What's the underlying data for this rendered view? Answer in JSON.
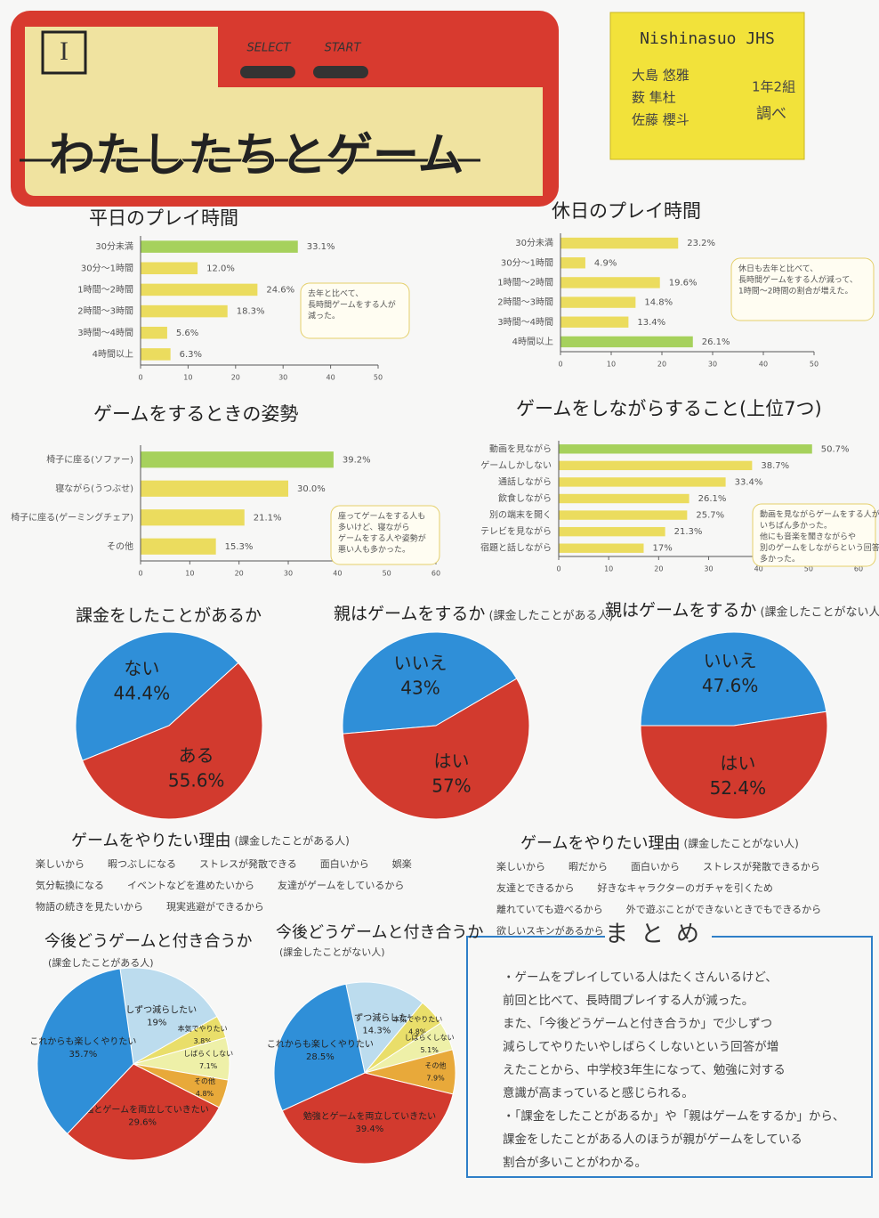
{
  "header": {
    "badge": "I",
    "select": "SELECT",
    "start": "START",
    "title": "わたしたちとゲーム",
    "school": "Nishinasuo JHS",
    "members": [
      "大島 悠雅",
      "薮 隼杜",
      "佐藤 櫻斗"
    ],
    "class": "1年2組",
    "note": "調べ"
  },
  "chart_data": [
    {
      "type": "barh",
      "title": "平日のプレイ時間",
      "categories": [
        "30分未満",
        "30分〜1時間",
        "1時間〜2時間",
        "2時間〜3時間",
        "3時間〜4時間",
        "4時間以上"
      ],
      "values": [
        33.1,
        12.0,
        24.6,
        18.3,
        5.6,
        6.3
      ],
      "value_labels": [
        "33.1%",
        "12.0%",
        "24.6%",
        "18.3%",
        "5.6%",
        "6.3%"
      ],
      "colors": [
        "#a6d15c",
        "#ebdc5e",
        "#ebdc5e",
        "#ebdc5e",
        "#ebdc5e",
        "#ebdc5e"
      ],
      "xlim": [
        0,
        50
      ],
      "xticks": [
        0,
        10,
        20,
        30,
        40,
        50
      ],
      "note": [
        "去年と比べて、",
        "長時間ゲームをする人が",
        "減った。"
      ]
    },
    {
      "type": "barh",
      "title": "休日のプレイ時間",
      "categories": [
        "30分未満",
        "30分〜1時間",
        "1時間〜2時間",
        "2時間〜3時間",
        "3時間〜4時間",
        "4時間以上"
      ],
      "values": [
        23.2,
        4.9,
        19.6,
        14.8,
        13.4,
        26.1
      ],
      "value_labels": [
        "23.2%",
        "4.9%",
        "19.6%",
        "14.8%",
        "13.4%",
        "26.1%"
      ],
      "colors": [
        "#ebdc5e",
        "#ebdc5e",
        "#ebdc5e",
        "#ebdc5e",
        "#ebdc5e",
        "#a6d15c"
      ],
      "xlim": [
        0,
        50
      ],
      "xticks": [
        0,
        10,
        20,
        30,
        40,
        50
      ],
      "note": [
        "休日も去年と比べて、",
        "長時間ゲームをする人が減って、",
        "1時間〜2時間の割合が増えた。"
      ]
    },
    {
      "type": "barh",
      "title": "ゲームをするときの姿勢",
      "categories": [
        "椅子に座る(ソファー)",
        "寝ながら(うつぶせ)",
        "椅子に座る(ゲーミングチェア)",
        "その他"
      ],
      "values": [
        39.2,
        30.0,
        21.1,
        15.3
      ],
      "value_labels": [
        "39.2%",
        "30.0%",
        "21.1%",
        "15.3%"
      ],
      "colors": [
        "#a6d15c",
        "#ebdc5e",
        "#ebdc5e",
        "#ebdc5e"
      ],
      "xlim": [
        0,
        60
      ],
      "xticks": [
        0,
        10,
        20,
        30,
        40,
        50,
        60
      ],
      "note": [
        "座ってゲームをする人も",
        "多いけど、寝ながら",
        "ゲームをする人や姿勢が",
        "悪い人も多かった。"
      ]
    },
    {
      "type": "barh",
      "title": "ゲームをしながらすること(上位7つ)",
      "categories": [
        "動画を見ながら",
        "ゲームしかしない",
        "通話しながら",
        "飲食しながら",
        "別の端末を開く",
        "テレビを見ながら",
        "宿題と話しながら"
      ],
      "values": [
        50.7,
        38.7,
        33.4,
        26.1,
        25.7,
        21.3,
        17
      ],
      "value_labels": [
        "50.7%",
        "38.7%",
        "33.4%",
        "26.1%",
        "25.7%",
        "21.3%",
        "17%"
      ],
      "colors": [
        "#a6d15c",
        "#ebdc5e",
        "#ebdc5e",
        "#ebdc5e",
        "#ebdc5e",
        "#ebdc5e",
        "#ebdc5e"
      ],
      "xlim": [
        0,
        60
      ],
      "xticks": [
        0,
        10,
        20,
        30,
        40,
        50,
        60
      ],
      "note": [
        "動画を見ながらゲームをする人が",
        "いちばん多かった。",
        "他にも音楽を聞きながらや",
        "別のゲームをしながらという回答も",
        "多かった。"
      ]
    },
    {
      "type": "pie",
      "title": "課金をしたことがあるか",
      "categories": [
        "ない",
        "ある"
      ],
      "values": [
        44.4,
        55.6
      ],
      "value_labels": [
        "44.4%",
        "55.6%"
      ],
      "colors": [
        "#2f8fd8",
        "#d23a2e"
      ]
    },
    {
      "type": "pie",
      "title": "親はゲームをするか",
      "subtitle": "(課金したことがある人)",
      "categories": [
        "いいえ",
        "はい"
      ],
      "values": [
        43,
        57
      ],
      "value_labels": [
        "43%",
        "57%"
      ],
      "colors": [
        "#2f8fd8",
        "#d23a2e"
      ]
    },
    {
      "type": "pie",
      "title": "親はゲームをするか",
      "subtitle": "(課金したことがない人)",
      "categories": [
        "いいえ",
        "はい"
      ],
      "values": [
        47.6,
        52.4
      ],
      "value_labels": [
        "47.6%",
        "52.4%"
      ],
      "colors": [
        "#2f8fd8",
        "#d23a2e"
      ]
    },
    {
      "type": "pie",
      "title": "今後どうゲームと付き合うか",
      "subtitle": "(課金したことがある人)",
      "categories": [
        "少しずつ減らしたい",
        "本気でやりたい",
        "しばらくしない",
        "その他",
        "勉強とゲームを両立していきたい",
        "これからも楽しくやりたい"
      ],
      "values": [
        19,
        3.8,
        7.1,
        4.8,
        29.6,
        35.7
      ],
      "value_labels": [
        "19%",
        "3.8%",
        "7.1%",
        "4.8%",
        "29.6%",
        "35.7%"
      ],
      "colors": [
        "#bcdcee",
        "#e9de6a",
        "#eef0a8",
        "#e8a93a",
        "#d23a2e",
        "#2f8fd8"
      ]
    },
    {
      "type": "pie",
      "title": "今後どうゲームと付き合うか",
      "subtitle": "(課金したことがない人)",
      "categories": [
        "少しずつ減らしたい",
        "本気でやりたい",
        "しばらくしない",
        "その他",
        "勉強とゲームを両立していきたい",
        "これからも楽しくやりたい"
      ],
      "values": [
        14.3,
        4.8,
        5.1,
        7.9,
        39.4,
        28.5
      ],
      "value_labels": [
        "14.3%",
        "4.8%",
        "5.1%",
        "7.9%",
        "39.4%",
        "28.5%"
      ],
      "colors": [
        "#bcdcee",
        "#e9de6a",
        "#eef0a8",
        "#e8a93a",
        "#d23a2e",
        "#2f8fd8"
      ]
    }
  ],
  "reasons": [
    {
      "title": "ゲームをやりたい理由",
      "subtitle": "(課金したことがある人)",
      "items": [
        "楽しいから",
        "暇つぶしになる",
        "ストレスが発散できる",
        "面白いから",
        "娯楽",
        "気分転換になる",
        "イベントなどを進めたいから",
        "友達がゲームをしているから",
        "物語の続きを見たいから",
        "現実逃避ができるから"
      ]
    },
    {
      "title": "ゲームをやりたい理由",
      "subtitle": "(課金したことがない人)",
      "items": [
        "楽しいから",
        "暇だから",
        "面白いから",
        "ストレスが発散できるから",
        "友達とできるから",
        "好きなキャラクターのガチャを引くため",
        "離れていても遊べるから",
        "外で遊ぶことができないときでもできるから",
        "欲しいスキンがあるから"
      ]
    }
  ],
  "summary": {
    "title": "まとめ",
    "lines": [
      "・ゲームをプレイしている人はたくさんいるけど、",
      "前回と比べて、長時間プレイする人が減った。",
      "また、「今後どうゲームと付き合うか」で少しずつ",
      "減らしてやりたいやしばらくしないという回答が増",
      "えたことから、中学校3年生になって、勉強に対する",
      "意識が高まっていると感じられる。",
      "・「課金をしたことがあるか」や「親はゲームをするか」から、",
      "課金をしたことがある人のほうが親がゲームをしている",
      "割合が多いことがわかる。"
    ]
  }
}
